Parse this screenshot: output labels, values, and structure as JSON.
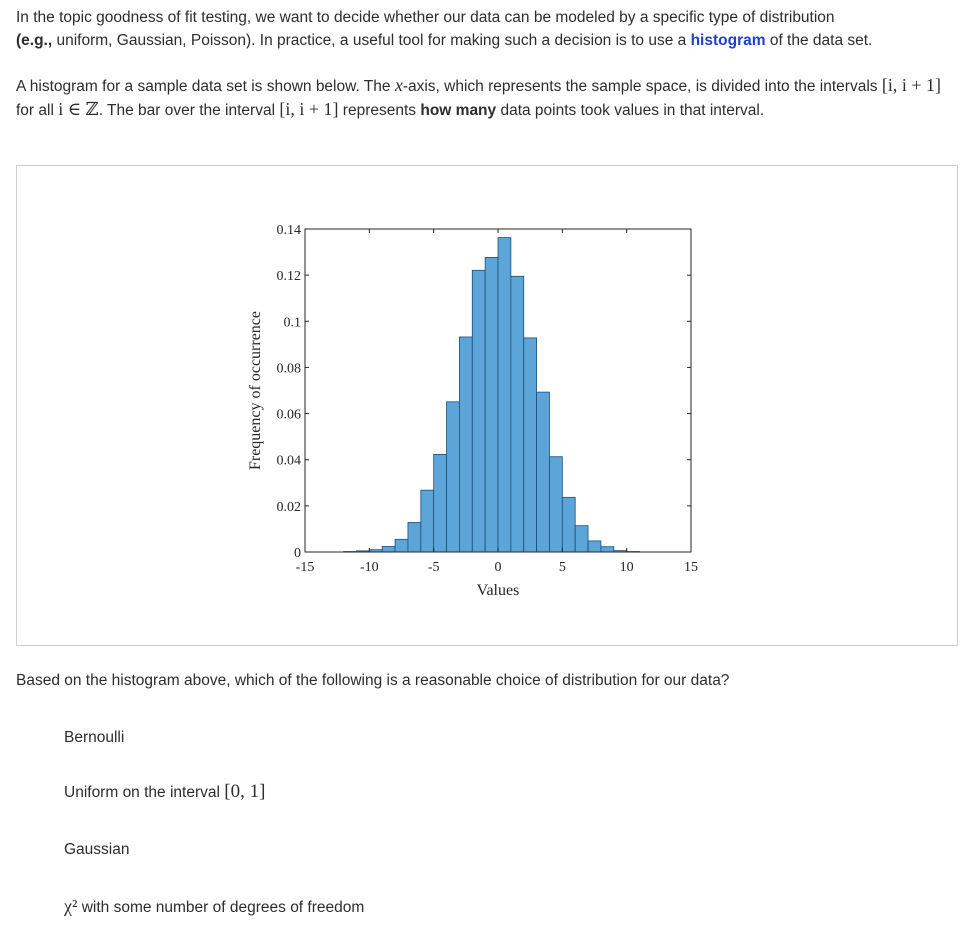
{
  "intro": {
    "p1_a": "In the topic goodness of fit testing, we want to decide whether our data can be modeled by a specific type of distribution",
    "p1_b": "(e.g.,",
    "p1_c": " uniform, Gaussian, Poisson). In practice, a useful tool for making such a decision is to use a ",
    "p1_histogram": "histogram",
    "p1_d": " of the data set."
  },
  "description": {
    "p2_a": "A histogram for a sample data set is shown below. The ",
    "p2_x": "x",
    "p2_b": "-axis, which represents the sample space, is divided into the intervals ",
    "p2_interval1": "[i, i + 1]",
    "p2_c": " for all ",
    "p2_i_in_z": "i ∈ ℤ",
    "p2_d": ". The bar over the interval ",
    "p2_interval2": "[i, i + 1]",
    "p2_e": " represents ",
    "p2_howmany": "how many",
    "p2_f": " data points took values in that interval."
  },
  "chart_data": {
    "type": "bar",
    "title": "",
    "xlabel": "Values",
    "ylabel": "Frequency of occurrence",
    "xlim": [
      -15,
      15
    ],
    "ylim": [
      0,
      0.14
    ],
    "xticks": [
      "-15",
      "-10",
      "-5",
      "0",
      "5",
      "10",
      "15"
    ],
    "yticks": [
      "0",
      "0.02",
      "0.04",
      "0.06",
      "0.08",
      "0.1",
      "0.12",
      "0.14"
    ],
    "bin_width": 1,
    "bin_starts": [
      -12,
      -11,
      -10,
      -9,
      -8,
      -7,
      -6,
      -5,
      -4,
      -3,
      -2,
      -1,
      0,
      1,
      2,
      3,
      4,
      5,
      6,
      7,
      8,
      9,
      10
    ],
    "values": [
      0.0002,
      0.0005,
      0.001,
      0.0024,
      0.0055,
      0.0128,
      0.0268,
      0.0423,
      0.0651,
      0.0932,
      0.1221,
      0.1277,
      0.1363,
      0.1195,
      0.0928,
      0.0693,
      0.0413,
      0.0237,
      0.0114,
      0.0048,
      0.0023,
      0.0006,
      0.0002
    ],
    "bar_color": "#5ca5d9",
    "bar_edge_color": "#1f4e79",
    "grid": false
  },
  "question": {
    "text": "Based on the histogram above, which of the following is a reasonable choice of distribution for our data?"
  },
  "options": [
    {
      "label": "Bernoulli"
    },
    {
      "label_a": "Uniform on the interval ",
      "label_math": "[0, 1]"
    },
    {
      "label": "Gaussian"
    },
    {
      "label_math": "χ²",
      "label_b": " with some number of degrees of freedom"
    }
  ]
}
